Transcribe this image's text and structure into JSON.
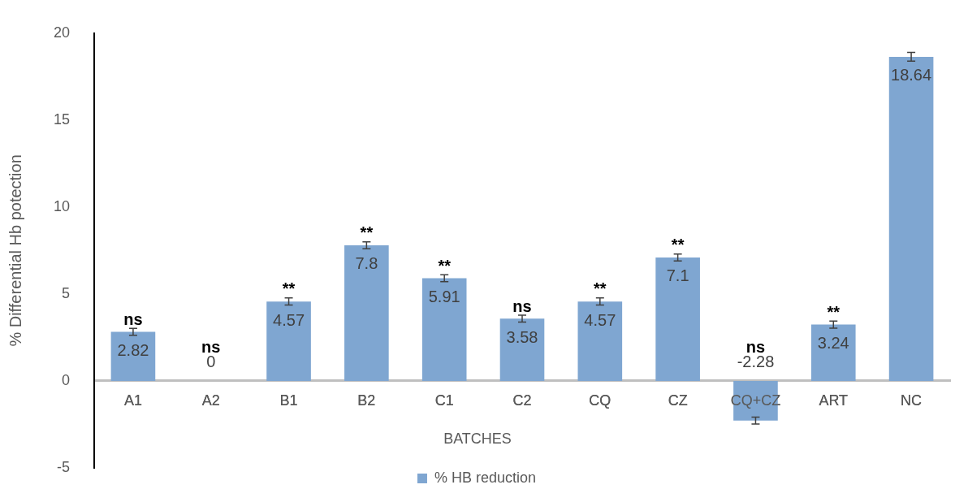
{
  "chart_data": {
    "type": "bar",
    "xlabel": "BATCHES",
    "ylabel": "% Differential Hb potection",
    "categories": [
      "A1",
      "A2",
      "B1",
      "B2",
      "C1",
      "C2",
      "CQ",
      "CZ",
      "CQ+CZ",
      "ART",
      "NC"
    ],
    "series": [
      {
        "name": "% HB reduction",
        "color": "#7fa6d1",
        "values": [
          2.82,
          0,
          4.57,
          7.8,
          5.91,
          3.58,
          4.57,
          7.1,
          -2.28,
          3.24,
          18.64
        ],
        "errors": [
          0.2,
          null,
          0.2,
          0.2,
          0.2,
          0.2,
          0.2,
          0.2,
          0.2,
          0.2,
          0.25
        ]
      }
    ],
    "data_labels": true,
    "ylim": [
      -5,
      20
    ],
    "yticks": [
      -5,
      0,
      5,
      10,
      15,
      20
    ],
    "grid": false,
    "legend": "bottom",
    "annotations": [
      {
        "text": "ns",
        "x": "A1",
        "y": 2.82
      },
      {
        "text": "ns",
        "x": "A2",
        "y": 0
      },
      {
        "text": "**",
        "x": "B1",
        "y": 4.57
      },
      {
        "text": "**",
        "x": "B2",
        "y": 7.8
      },
      {
        "text": "**",
        "x": "C1",
        "y": 5.91
      },
      {
        "text": "ns",
        "x": "C2",
        "y": 3.58
      },
      {
        "text": "**",
        "x": "CQ",
        "y": 4.57
      },
      {
        "text": "**",
        "x": "CZ",
        "y": 7.1
      },
      {
        "text": "ns",
        "x": "CQ+CZ",
        "y": 0
      },
      {
        "text": "**",
        "x": "ART",
        "y": 3.24
      }
    ]
  }
}
